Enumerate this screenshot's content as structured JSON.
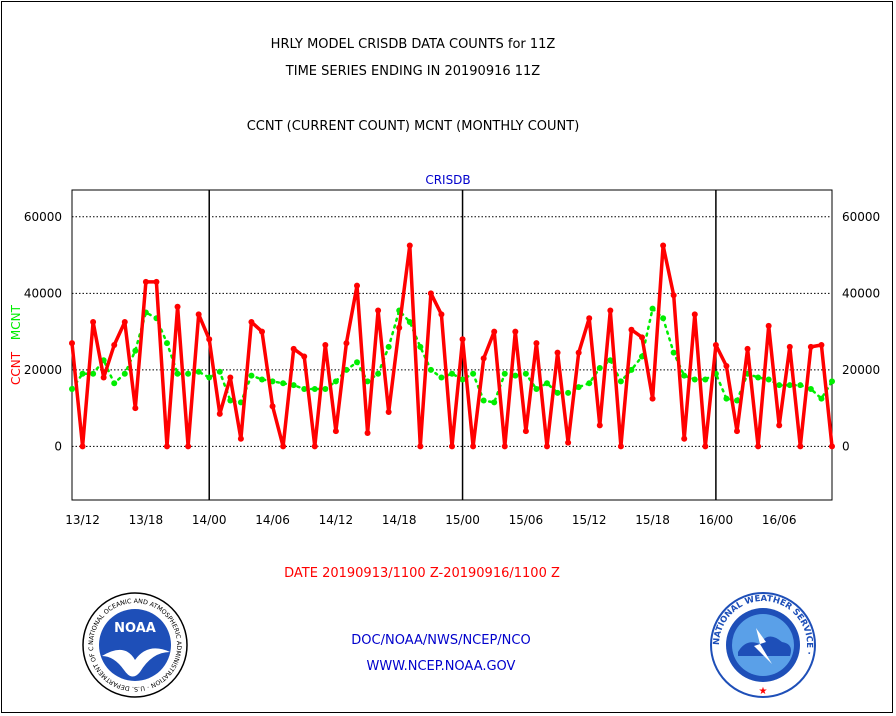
{
  "header": {
    "title_line1": "HRLY MODEL CRISDB DATA COUNTS for 11Z",
    "title_line2": "TIME SERIES ENDING IN 20190916 11Z",
    "subtitle": "CCNT (CURRENT COUNT) MCNT (MONTHLY COUNT)"
  },
  "footer": {
    "date_range": "DATE 20190913/1100 Z-20190916/1100 Z",
    "org_line1": "DOC/NOAA/NWS/NCEP/NCO",
    "org_line2": "WWW.NCEP.NOAA.GOV",
    "noaa_logo_text": "NOAA",
    "noaa_ring_text": "NATIONAL OCEANIC AND ATMOSPHERIC ADMINISTRATION · U.S. DEPARTMENT OF COMMERCE ·",
    "nws_ring_text": "NATIONAL WEATHER SERVICE ·"
  },
  "colors": {
    "ccnt": "#ff0000",
    "mcnt": "#00ee00",
    "blue_text": "#0000cc"
  },
  "chart_data": {
    "type": "line",
    "title": "CRISDB",
    "ylabel_ccnt": "CCNT",
    "ylabel_mcnt": "MCNT",
    "ylim": [
      -14000,
      67000
    ],
    "y_ticks": [
      0,
      20000,
      40000,
      60000
    ],
    "y_tick_labels": [
      "0",
      "20000",
      "40000",
      "60000"
    ],
    "x_tick_labels": [
      "13/12",
      "13/18",
      "14/00",
      "14/06",
      "14/12",
      "14/18",
      "15/00",
      "15/06",
      "15/12",
      "15/18",
      "16/00",
      "16/06"
    ],
    "x_tick_hours": [
      1,
      7,
      13,
      19,
      25,
      31,
      37,
      43,
      49,
      55,
      61,
      67
    ],
    "day_boundaries_hours": [
      13,
      37,
      61
    ],
    "x_range_hours": [
      0,
      72
    ],
    "grid": true,
    "series": [
      {
        "name": "CCNT",
        "values": [
          27000,
          0,
          32500,
          18000,
          26500,
          32500,
          10000,
          43000,
          43000,
          0,
          36500,
          0,
          34500,
          28000,
          8500,
          18000,
          2000,
          32500,
          30000,
          10500,
          0,
          25500,
          23500,
          0,
          26500,
          4000,
          27000,
          42000,
          3500,
          35500,
          9000,
          31000,
          52500,
          0,
          40000,
          34500,
          0,
          28000,
          0,
          23000,
          30000,
          0,
          30000,
          4000,
          27000,
          0,
          24500,
          1000,
          24500,
          33500,
          5500,
          35500,
          0,
          30500,
          28500,
          12500,
          52500,
          39500,
          2000,
          34500,
          0,
          26500,
          21000,
          4000,
          25500,
          0,
          31500,
          5500,
          26000,
          0,
          26000,
          26500,
          0
        ]
      },
      {
        "name": "MCNT",
        "values": [
          15000,
          19000,
          19000,
          22500,
          16500,
          19000,
          25000,
          35000,
          33500,
          27000,
          19000,
          19000,
          19500,
          18000,
          19500,
          12000,
          11500,
          18500,
          17500,
          17000,
          16500,
          16000,
          15000,
          15000,
          15000,
          17000,
          20000,
          22000,
          17000,
          19000,
          26000,
          35500,
          32500,
          26000,
          20000,
          18000,
          19000,
          17500,
          19000,
          12000,
          11500,
          19000,
          18500,
          19000,
          15000,
          16500,
          14000,
          14000,
          15500,
          16500,
          20500,
          22500,
          17000,
          20000,
          23500,
          36000,
          33500,
          24500,
          18500,
          17500,
          17500,
          19000,
          12500,
          12000,
          19000,
          18000,
          17500,
          16000,
          16000,
          16000,
          15000,
          12500,
          17000
        ]
      }
    ]
  }
}
